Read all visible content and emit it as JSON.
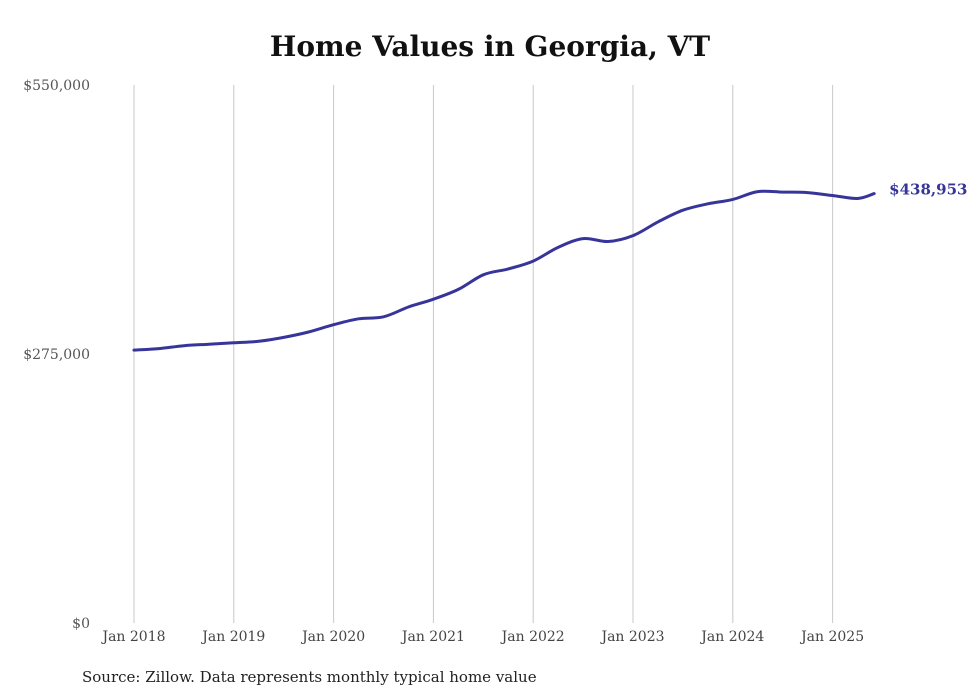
{
  "chart_data": {
    "type": "line",
    "title": "Home Values in Georgia, VT",
    "source": "Source: Zillow. Data represents monthly typical home value",
    "ylim": [
      0,
      550000
    ],
    "y_ticks": [
      "$550,000",
      "$275,000",
      "$0"
    ],
    "y_tick_values": [
      550000,
      275000,
      0
    ],
    "x_ticks": [
      "Jan 2018",
      "Jan 2019",
      "Jan 2020",
      "Jan 2021",
      "Jan 2022",
      "Jan 2023",
      "Jan 2024",
      "Jan 2025"
    ],
    "grid": "vertical",
    "line_color": "#37359a",
    "end_label": "$438,953",
    "series": [
      {
        "x": [
          "2018-01",
          "2018-04",
          "2018-07",
          "2018-10",
          "2019-01",
          "2019-04",
          "2019-07",
          "2019-10",
          "2020-01",
          "2020-04",
          "2020-07",
          "2020-10",
          "2021-01",
          "2021-04",
          "2021-07",
          "2021-10",
          "2022-01",
          "2022-04",
          "2022-07",
          "2022-10",
          "2023-01",
          "2023-04",
          "2023-07",
          "2023-10",
          "2024-01",
          "2024-04",
          "2024-07",
          "2024-10",
          "2025-01",
          "2025-04",
          "2025-06"
        ],
        "values": [
          279000,
          280500,
          283500,
          285000,
          286500,
          288000,
          292000,
          297500,
          305000,
          311000,
          313000,
          323000,
          331000,
          341000,
          356000,
          362000,
          370000,
          384000,
          393000,
          390000,
          396000,
          410000,
          422000,
          428500,
          433000,
          441000,
          440500,
          440000,
          437000,
          434000,
          438953
        ]
      }
    ]
  }
}
